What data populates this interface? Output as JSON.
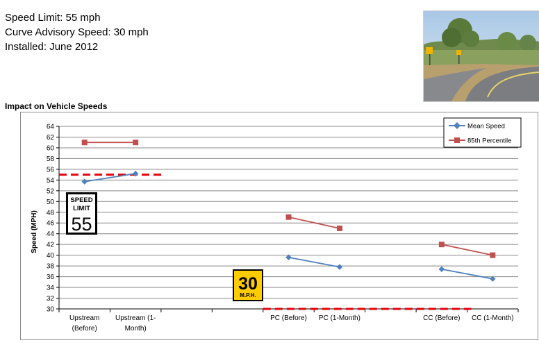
{
  "info": {
    "speed_limit": "Speed Limit: 55 mph",
    "curve_advisory": "Curve Advisory Speed: 30 mph",
    "installed": "Installed: June 2012"
  },
  "section_title": "Impact on Vehicle Speeds",
  "signs": {
    "speed_limit_line1": "SPEED",
    "speed_limit_line2": "LIMIT",
    "speed_limit_value": "55",
    "advisory_value": "30",
    "advisory_unit": "M.P.H."
  },
  "colors": {
    "mean": "#4f81bd",
    "p85": "#c0504d",
    "reference": "#e8000b",
    "grid": "#878787",
    "advisory_sign": "#ffcc00"
  },
  "chart_data": {
    "type": "line",
    "title": "",
    "xlabel": "",
    "ylabel": "Speed (MPH)",
    "ylim": [
      30,
      64
    ],
    "ytick_step": 2,
    "categories": [
      [
        "Upstream",
        "(Before)"
      ],
      [
        "Upstream (1-",
        "Month)"
      ],
      [
        ""
      ],
      [
        ""
      ],
      [
        "PC (Before)"
      ],
      [
        "PC (1-Month)"
      ],
      [
        ""
      ],
      [
        "CC (Before)"
      ],
      [
        "CC (1-Month)"
      ]
    ],
    "series": [
      {
        "name": "Mean Speed",
        "values": [
          53.7,
          55.2,
          null,
          null,
          39.6,
          37.8,
          null,
          37.4,
          35.6
        ]
      },
      {
        "name": "85th Percentile",
        "values": [
          61.0,
          61.0,
          null,
          null,
          47.1,
          45.0,
          null,
          42.0,
          40.0
        ]
      }
    ],
    "reference_lines": [
      {
        "value": 55,
        "from_category": 0,
        "to_category": 2
      },
      {
        "value": 30,
        "from_category": 4,
        "to_category": 8
      }
    ],
    "legend": "top-right",
    "grid": true
  }
}
